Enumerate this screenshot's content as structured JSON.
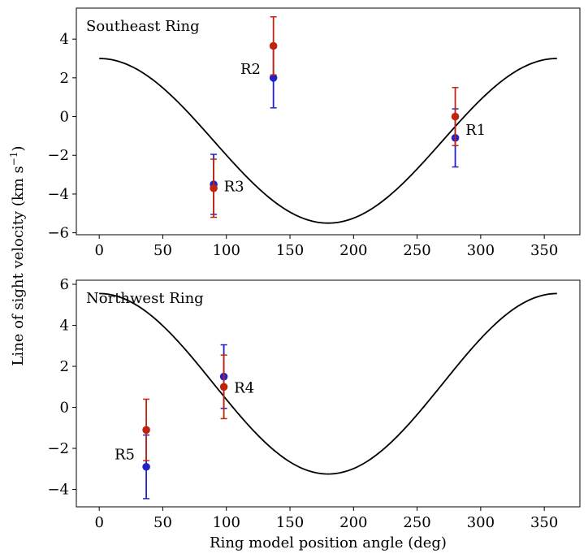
{
  "figure": {
    "ylabel": "Line of sight velocity (km s",
    "ylabel_sup": "−1",
    "ylabel_tail": ")",
    "xlabel": "Ring model position angle (deg)"
  },
  "chart_data": [
    {
      "type": "scatter",
      "title": "Southeast Ring",
      "xlim": [
        -18,
        378
      ],
      "ylim": [
        -6.1,
        5.6
      ],
      "xticks": [
        0,
        50,
        100,
        150,
        200,
        250,
        300,
        350
      ],
      "yticks": [
        -6,
        -4,
        -2,
        0,
        2,
        4
      ],
      "model_curve": {
        "name": "model",
        "color": "#000000",
        "offset": -1.25,
        "amplitude": 4.25,
        "phase_deg": 180,
        "x_range": [
          0,
          360
        ]
      },
      "series": [
        {
          "name": "red",
          "color": "#c0240e",
          "points": [
            {
              "label": "R1",
              "x": 280,
              "y": 0.0,
              "err": 1.5
            },
            {
              "label": "R2",
              "x": 137,
              "y": 3.65,
              "err": 1.5
            },
            {
              "label": "R3",
              "x": 90,
              "y": -3.7,
              "err": 1.5
            }
          ]
        },
        {
          "name": "blue",
          "color": "#2222c8",
          "points": [
            {
              "label": "R1",
              "x": 280,
              "y": -1.1,
              "err": 1.5
            },
            {
              "label": "R2",
              "x": 137,
              "y": 2.0,
              "err": 1.55
            },
            {
              "label": "R3",
              "x": 90,
              "y": -3.5,
              "err": 1.55
            }
          ]
        }
      ],
      "annotations": [
        {
          "text": "R1",
          "x": 288,
          "y": -0.7
        },
        {
          "text": "R2",
          "x": 111,
          "y": 2.45
        },
        {
          "text": "R3",
          "x": 98,
          "y": -3.6
        }
      ]
    },
    {
      "type": "scatter",
      "title": "Northwest Ring",
      "xlim": [
        -18,
        378
      ],
      "ylim": [
        -4.85,
        6.2
      ],
      "xticks": [
        0,
        50,
        100,
        150,
        200,
        250,
        300,
        350
      ],
      "yticks": [
        -4,
        -2,
        0,
        2,
        4,
        6
      ],
      "model_curve": {
        "name": "model",
        "color": "#000000",
        "offset": 1.15,
        "amplitude": 4.4,
        "phase_deg": 180,
        "x_range": [
          0,
          360
        ]
      },
      "series": [
        {
          "name": "red",
          "color": "#c0240e",
          "points": [
            {
              "label": "R4",
              "x": 98,
              "y": 1.0,
              "err": 1.55
            },
            {
              "label": "R5",
              "x": 37,
              "y": -1.1,
              "err": 1.5
            }
          ]
        },
        {
          "name": "blue",
          "color": "#2222c8",
          "points": [
            {
              "label": "R4",
              "x": 98,
              "y": 1.5,
              "err": 1.55
            },
            {
              "label": "R5",
              "x": 37,
              "y": -2.9,
              "err": 1.55
            }
          ]
        }
      ],
      "annotations": [
        {
          "text": "R4",
          "x": 106,
          "y": 0.95
        },
        {
          "text": "R5",
          "x": 12,
          "y": -2.3
        }
      ]
    }
  ]
}
